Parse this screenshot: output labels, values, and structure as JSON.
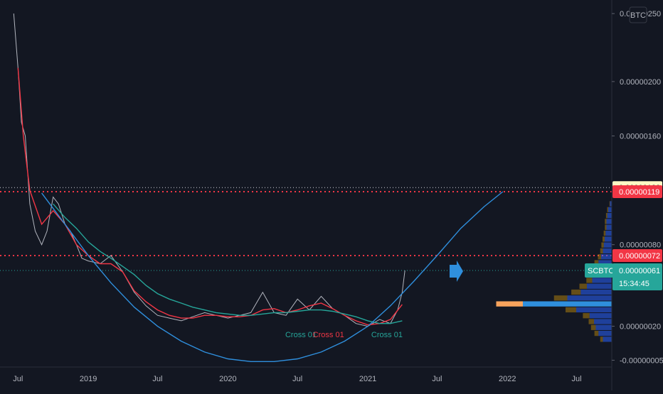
{
  "currency_label": "BTC",
  "chart_data": {
    "type": "line",
    "symbol": "SCBTC",
    "countdown": "15:34:45",
    "y_ticks": [
      "0.00000250",
      "0.00000200",
      "0.00000160",
      "0.00000080",
      "0.00000020",
      "-0.00000005"
    ],
    "y_tick_values": [
      2.5e-06,
      2e-06,
      1.6e-06,
      8e-07,
      2e-07,
      -5e-08
    ],
    "x_ticks": [
      "Jul",
      "2019",
      "Jul",
      "2020",
      "Jul",
      "2021",
      "Jul",
      "2022",
      "Jul"
    ],
    "x_tick_dates": [
      "2018-07",
      "2019-01",
      "2019-07",
      "2020-01",
      "2020-07",
      "2021-01",
      "2021-07",
      "2022-01",
      "2022-07"
    ],
    "price_labels": {
      "top_level": "0.00000122",
      "resistance_high": "0.00000119",
      "resistance_low": "0.00000072",
      "last_price": "0.00000061"
    },
    "levels": [
      {
        "value": 1.19e-06,
        "color": "#f23645"
      },
      {
        "value": 7.2e-07,
        "color": "#f23645"
      }
    ],
    "series": [
      {
        "color": "#b2b5be",
        "x": [
          "2018-06-20",
          "2018-07-01",
          "2018-07-10",
          "2018-07-20",
          "2018-08-01",
          "2018-08-15",
          "2018-09-01",
          "2018-09-15",
          "2018-10-01",
          "2018-10-15",
          "2018-11-01",
          "2018-11-15",
          "2018-12-01",
          "2018-12-15",
          "2019-01-01",
          "2019-02-01",
          "2019-03-01",
          "2019-04-01",
          "2019-05-01",
          "2019-06-01",
          "2019-07-01",
          "2019-08-01",
          "2019-09-01",
          "2019-10-01",
          "2019-11-01",
          "2019-12-01",
          "2020-01-01",
          "2020-02-01",
          "2020-03-01",
          "2020-04-01",
          "2020-05-01",
          "2020-06-01",
          "2020-07-01",
          "2020-08-01",
          "2020-09-01",
          "2020-10-01",
          "2020-11-01",
          "2020-12-01",
          "2021-01-01",
          "2021-02-01",
          "2021-03-01",
          "2021-03-20",
          "2021-04-01",
          "2021-04-08"
        ],
        "values": [
          2.5e-06,
          2.1e-06,
          1.7e-06,
          1.6e-06,
          1.1e-06,
          9e-07,
          8e-07,
          9e-07,
          1.15e-06,
          1.1e-06,
          9.5e-07,
          9e-07,
          8e-07,
          7e-07,
          6.8e-07,
          6.6e-07,
          7.2e-07,
          6e-07,
          4.5e-07,
          3.5e-07,
          2.8e-07,
          2.6e-07,
          2.4e-07,
          2.7e-07,
          3e-07,
          2.8e-07,
          2.6e-07,
          2.8e-07,
          3e-07,
          4.5e-07,
          3e-07,
          2.8e-07,
          4e-07,
          3.2e-07,
          4.2e-07,
          3.3e-07,
          2.8e-07,
          2.2e-07,
          2e-07,
          2.5e-07,
          2.2e-07,
          3.2e-07,
          4.5e-07,
          6.1e-07
        ]
      },
      {
        "color": "#f23645",
        "x": [
          "2018-07-01",
          "2018-07-15",
          "2018-08-01",
          "2018-09-01",
          "2018-10-01",
          "2018-11-01",
          "2018-12-01",
          "2019-01-01",
          "2019-02-01",
          "2019-03-01",
          "2019-04-01",
          "2019-05-01",
          "2019-06-01",
          "2019-07-01",
          "2019-08-01",
          "2019-09-01",
          "2019-10-01",
          "2019-11-01",
          "2019-12-01",
          "2020-01-01",
          "2020-02-01",
          "2020-03-01",
          "2020-04-01",
          "2020-05-01",
          "2020-06-01",
          "2020-07-01",
          "2020-08-01",
          "2020-09-01",
          "2020-10-01",
          "2020-11-01",
          "2020-12-01",
          "2021-01-01",
          "2021-02-01",
          "2021-03-01",
          "2021-04-01"
        ],
        "values": [
          2.1e-06,
          1.6e-06,
          1.2e-06,
          9.5e-07,
          1.05e-06,
          9.5e-07,
          8e-07,
          7.2e-07,
          6.6e-07,
          6.6e-07,
          6e-07,
          4.6e-07,
          3.8e-07,
          3.2e-07,
          2.8e-07,
          2.6e-07,
          2.6e-07,
          2.8e-07,
          2.8e-07,
          2.7e-07,
          2.7e-07,
          2.8e-07,
          3.2e-07,
          3.3e-07,
          3e-07,
          3.2e-07,
          3.5e-07,
          3.7e-07,
          3.3e-07,
          2.8e-07,
          2.4e-07,
          2.1e-07,
          2.2e-07,
          2.5e-07,
          3.6e-07
        ]
      },
      {
        "color": "#26a69a",
        "x": [
          "2018-10-01",
          "2018-11-01",
          "2018-12-01",
          "2019-01-01",
          "2019-02-01",
          "2019-03-01",
          "2019-04-01",
          "2019-05-01",
          "2019-06-01",
          "2019-07-01",
          "2019-08-01",
          "2019-09-01",
          "2019-10-01",
          "2019-11-01",
          "2019-12-01",
          "2020-01-01",
          "2020-02-01",
          "2020-03-01",
          "2020-04-01",
          "2020-05-01",
          "2020-06-01",
          "2020-07-01",
          "2020-08-01",
          "2020-09-01",
          "2020-10-01",
          "2020-11-01",
          "2020-12-01",
          "2021-01-01",
          "2021-02-01",
          "2021-03-01",
          "2021-04-01"
        ],
        "values": [
          1.1e-06,
          1e-06,
          9.2e-07,
          8.2e-07,
          7.5e-07,
          7e-07,
          6.4e-07,
          5.8e-07,
          5e-07,
          4.4e-07,
          4e-07,
          3.7e-07,
          3.4e-07,
          3.2e-07,
          3e-07,
          2.9e-07,
          2.8e-07,
          2.8e-07,
          2.9e-07,
          3e-07,
          3e-07,
          3.1e-07,
          3.2e-07,
          3.2e-07,
          3.1e-07,
          2.9e-07,
          2.7e-07,
          2.4e-07,
          2.2e-07,
          2.2e-07,
          2.4e-07
        ]
      },
      {
        "color": "#2f8fdd",
        "x": [
          "2018-09-01",
          "2018-11-01",
          "2019-01-01",
          "2019-03-01",
          "2019-05-01",
          "2019-07-01",
          "2019-09-01",
          "2019-11-01",
          "2020-01-01",
          "2020-03-01",
          "2020-05-01",
          "2020-07-01",
          "2020-09-01",
          "2020-11-01",
          "2021-01-01",
          "2021-03-01",
          "2021-05-01",
          "2021-07-01",
          "2021-09-01",
          "2021-11-01",
          "2021-12-20"
        ],
        "values": [
          1.18e-06,
          9.5e-07,
          7.2e-07,
          5.2e-07,
          3.4e-07,
          2e-07,
          9e-08,
          1e-08,
          -4e-08,
          -6e-08,
          -6e-08,
          -4e-08,
          1e-08,
          9e-08,
          2e-07,
          3.5e-07,
          5.3e-07,
          7.2e-07,
          9.2e-07,
          1.08e-06,
          1.19e-06
        ]
      }
    ],
    "annotations": [
      {
        "text": "Cross 01",
        "x": "2020-07-10",
        "y": 1.2e-07,
        "color": "#26a69a"
      },
      {
        "text": "Cross 01",
        "x": "2020-09-20",
        "y": 1.2e-07,
        "color": "#f23645"
      },
      {
        "text": "Cross 01",
        "x": "2021-02-20",
        "y": 1.2e-07,
        "color": "#26a69a"
      }
    ],
    "ylim": [
      -1e-07,
      2.6e-06
    ],
    "xlim": [
      "2018-05-15",
      "2022-10-01"
    ],
    "grid": false,
    "volume_profile": [
      0.02,
      0.04,
      0.05,
      0.06,
      0.06,
      0.07,
      0.08,
      0.09,
      0.1,
      0.12,
      0.15,
      0.18,
      0.2,
      0.22,
      0.28,
      0.35,
      0.5,
      1.0,
      0.4,
      0.25,
      0.2,
      0.18,
      0.15,
      0.1
    ]
  }
}
